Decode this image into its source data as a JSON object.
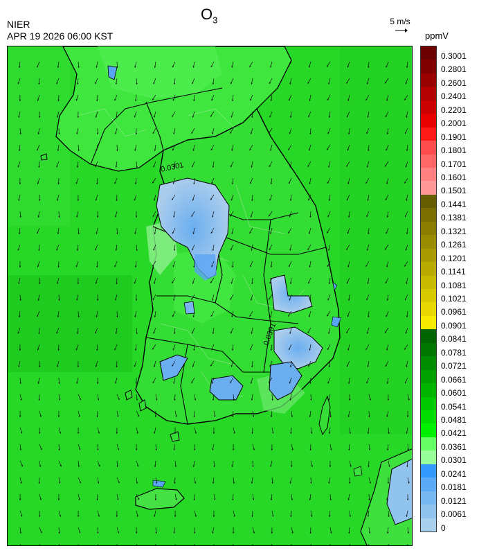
{
  "header": {
    "organization": "NIER",
    "timestamp": "APR 19 2026 06:00 KST",
    "pollutant_main": "O",
    "pollutant_sub": "3",
    "wind_reference": "5 m/s",
    "unit": "ppmV"
  },
  "map": {
    "contour_labels": [
      "0.0301",
      "0.0301"
    ],
    "icon": "wind-vector-field"
  },
  "legend": {
    "labels": [
      "0.3001",
      "0.2801",
      "0.2601",
      "0.2401",
      "0.2201",
      "0.2001",
      "0.1901",
      "0.1801",
      "0.1701",
      "0.1601",
      "0.1501",
      "0.1441",
      "0.1381",
      "0.1321",
      "0.1261",
      "0.1201",
      "0.1141",
      "0.1081",
      "0.1021",
      "0.0961",
      "0.0901",
      "0.0841",
      "0.0781",
      "0.0721",
      "0.0661",
      "0.0601",
      "0.0541",
      "0.0481",
      "0.0421",
      "0.0361",
      "0.0301",
      "0.0241",
      "0.0181",
      "0.0121",
      "0.0061",
      "0"
    ],
    "colors": [
      "#6b0000",
      "#800000",
      "#990000",
      "#b30000",
      "#cc0000",
      "#e60000",
      "#ff1a1a",
      "#ff4d4d",
      "#ff6666",
      "#ff8080",
      "#ff9999",
      "#665c00",
      "#7a6e00",
      "#8a7d00",
      "#998c00",
      "#a89a00",
      "#b8aa00",
      "#c8ba00",
      "#d8ca00",
      "#e6d800",
      "#f5ea00",
      "#006400",
      "#007800",
      "#008c00",
      "#00a000",
      "#00b400",
      "#00c800",
      "#00dc00",
      "#00f000",
      "#66ff66",
      "#99ff99",
      "#3399ff",
      "#5aaaf5",
      "#78b8f0",
      "#90c4ee",
      "#a9d0ec"
    ]
  }
}
